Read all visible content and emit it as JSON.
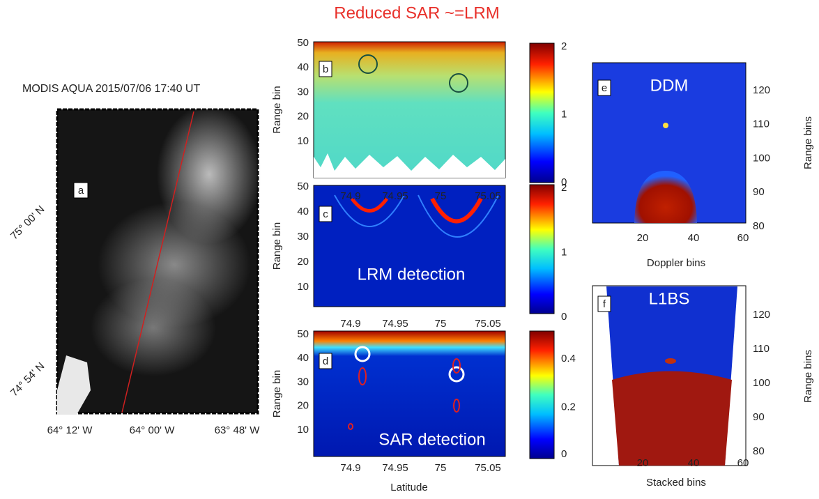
{
  "title": "Reduced SAR ~=LRM",
  "panels": {
    "a": {
      "label": "a",
      "title": "MODIS AQUA 2015/07/06 17:40 UT",
      "lat_labels": [
        "75° 00' N",
        "74° 54' N"
      ],
      "lon_labels": [
        "64° 12' W",
        "64° 00' W",
        "63° 48' W"
      ]
    },
    "b": {
      "label": "b",
      "ylabel": "Range bin",
      "yticks": [
        "50",
        "40",
        "30",
        "20",
        "10"
      ],
      "xticks": [
        "74.9",
        "74.95",
        "75",
        "75.05"
      ],
      "colorbar_ticks": [
        "2",
        "1",
        "0"
      ]
    },
    "c": {
      "label": "c",
      "ylabel": "Range bin",
      "annotation": "LRM detection",
      "yticks": [
        "50",
        "40",
        "30",
        "20",
        "10"
      ],
      "xticks": [
        "74.9",
        "74.95",
        "75",
        "75.05"
      ],
      "colorbar_ticks": [
        "2",
        "1",
        "0"
      ]
    },
    "d": {
      "label": "d",
      "ylabel": "Range bin",
      "xlabel": "Latitude",
      "annotation": "SAR detection",
      "yticks": [
        "50",
        "40",
        "30",
        "20",
        "10"
      ],
      "xticks": [
        "74.9",
        "74.95",
        "75",
        "75.05"
      ],
      "colorbar_ticks": [
        "0.4",
        "0.2",
        "0"
      ]
    },
    "e": {
      "label": "e",
      "annotation": "DDM",
      "ylabel": "Range bins",
      "xlabel": "Doppler bins",
      "yticks": [
        "120",
        "110",
        "100",
        "90",
        "80"
      ],
      "xticks": [
        "20",
        "40",
        "60"
      ]
    },
    "f": {
      "label": "f",
      "annotation": "L1BS",
      "ylabel": "Range bins",
      "xlabel": "Stacked bins",
      "yticks": [
        "120",
        "110",
        "100",
        "90",
        "80"
      ],
      "xticks": [
        "20",
        "40",
        "60"
      ]
    }
  }
}
